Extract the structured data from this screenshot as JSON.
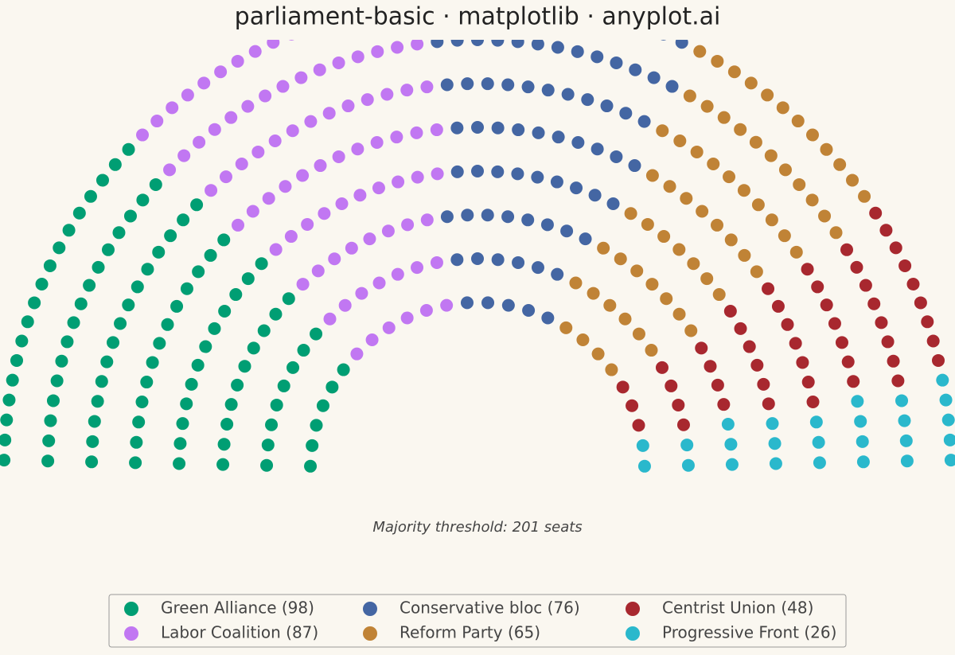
{
  "chart_data": {
    "type": "parliament",
    "title": "parliament-basic · matplotlib · anyplot.ai",
    "annotation": "Majority threshold: 201 seats",
    "series": [
      {
        "name": "Green Alliance (98)",
        "color": "#009e73",
        "values": [
          98
        ]
      },
      {
        "name": "Labor Coalition (87)",
        "color": "#c177f2",
        "values": [
          87
        ]
      },
      {
        "name": "Conservative bloc (76)",
        "color": "#4466a3",
        "values": [
          76
        ]
      },
      {
        "name": "Reform Party (65)",
        "color": "#c08336",
        "values": [
          65
        ]
      },
      {
        "name": "Centrist Union (48)",
        "color": "#a8282f",
        "values": [
          48
        ]
      },
      {
        "name": "Progressive Front (26)",
        "color": "#2ab8cc",
        "values": [
          26
        ]
      }
    ]
  }
}
